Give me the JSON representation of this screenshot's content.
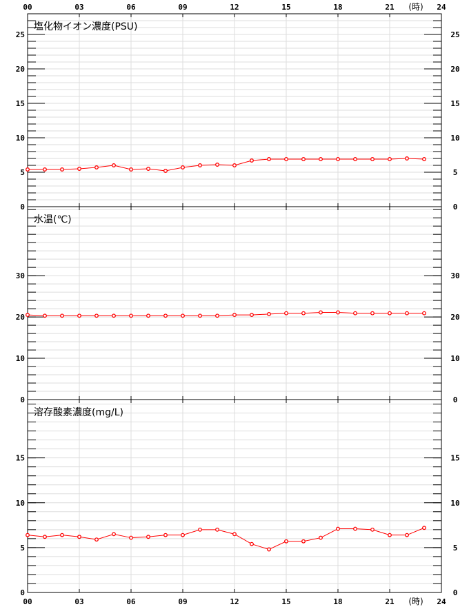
{
  "hour_unit": "(時)",
  "x_ticks": [
    "00",
    "03",
    "06",
    "09",
    "12",
    "15",
    "18",
    "21",
    "24"
  ],
  "line_color": "#ff0000",
  "chart_data": [
    {
      "type": "line",
      "title": "塩化物イオン濃度(PSU)",
      "ylim": [
        0,
        28
      ],
      "yticks": [
        0,
        5,
        10,
        15,
        20,
        25
      ],
      "minor_step": 1,
      "x": [
        0,
        1,
        2,
        3,
        4,
        5,
        6,
        7,
        8,
        9,
        10,
        11,
        12,
        13,
        14,
        15,
        16,
        17,
        18,
        19,
        20,
        21,
        22,
        23
      ],
      "values": [
        5.4,
        5.4,
        5.4,
        5.5,
        5.7,
        6.0,
        5.4,
        5.5,
        5.2,
        5.7,
        6.0,
        6.1,
        6.0,
        6.7,
        6.9,
        6.9,
        6.9,
        6.9,
        6.9,
        6.9,
        6.9,
        6.9,
        7.0,
        6.9
      ]
    },
    {
      "type": "line",
      "title": "水温(℃)",
      "ylim": [
        0,
        46.7
      ],
      "yticks": [
        0,
        10,
        20,
        30
      ],
      "minor_step": 2,
      "x": [
        0,
        1,
        2,
        3,
        4,
        5,
        6,
        7,
        8,
        9,
        10,
        11,
        12,
        13,
        14,
        15,
        16,
        17,
        18,
        19,
        20,
        21,
        22,
        23
      ],
      "values": [
        20.5,
        20.3,
        20.3,
        20.3,
        20.3,
        20.3,
        20.3,
        20.3,
        20.3,
        20.3,
        20.3,
        20.3,
        20.5,
        20.5,
        20.7,
        20.9,
        20.9,
        21.1,
        21.1,
        20.9,
        20.9,
        20.9,
        20.9,
        20.9
      ]
    },
    {
      "type": "line",
      "title": "溶存酸素濃度(mg/L)",
      "ylim": [
        0,
        21.5
      ],
      "yticks": [
        0,
        5,
        10,
        15
      ],
      "minor_step": 1,
      "x": [
        0,
        1,
        2,
        3,
        4,
        5,
        6,
        7,
        8,
        9,
        10,
        11,
        12,
        13,
        14,
        15,
        16,
        17,
        18,
        19,
        20,
        21,
        22,
        23
      ],
      "values": [
        6.4,
        6.2,
        6.4,
        6.2,
        5.9,
        6.5,
        6.1,
        6.2,
        6.4,
        6.4,
        7.0,
        7.0,
        6.5,
        5.4,
        4.8,
        5.7,
        5.7,
        6.1,
        7.1,
        7.1,
        7.0,
        6.4,
        6.4,
        7.2
      ]
    }
  ]
}
